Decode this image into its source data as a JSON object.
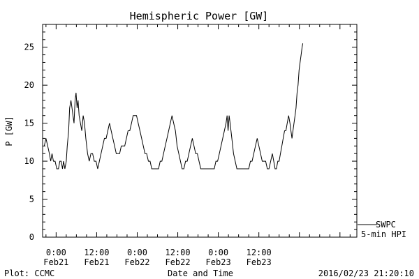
{
  "chart_data": {
    "type": "line",
    "title": "Hemispheric Power [GW]",
    "xlabel": "Date and Time",
    "ylabel": "P [GW]",
    "ylim": [
      0,
      28
    ],
    "xlim": [
      -4,
      89
    ],
    "x_unit": "hours since 2016-02-21 00:00",
    "yticks": [
      0,
      5,
      10,
      15,
      20,
      25
    ],
    "xticks": [
      {
        "x": 0,
        "time": "0:00",
        "date": "Feb21"
      },
      {
        "x": 12,
        "time": "12:00",
        "date": "Feb21"
      },
      {
        "x": 24,
        "time": "0:00",
        "date": "Feb22"
      },
      {
        "x": 36,
        "time": "12:00",
        "date": "Feb22"
      },
      {
        "x": 48,
        "time": "0:00",
        "date": "Feb23"
      },
      {
        "x": 60,
        "time": "12:00",
        "date": "Feb23"
      }
    ],
    "grid": false,
    "legend_placement": "bottom-right-outside",
    "series": [
      {
        "name": "SWPC 5-min HPI",
        "points": [
          [
            -3.5,
            12
          ],
          [
            -3.0,
            13
          ],
          [
            -2.5,
            12
          ],
          [
            -2.0,
            11
          ],
          [
            -1.6,
            10
          ],
          [
            -1.2,
            11
          ],
          [
            -0.8,
            10
          ],
          [
            -0.3,
            10
          ],
          [
            0.2,
            9
          ],
          [
            0.7,
            9
          ],
          [
            1.1,
            10
          ],
          [
            1.5,
            10
          ],
          [
            1.9,
            9
          ],
          [
            2.2,
            10
          ],
          [
            2.6,
            9
          ],
          [
            3.0,
            10
          ],
          [
            3.3,
            12
          ],
          [
            3.7,
            14
          ],
          [
            4.0,
            17
          ],
          [
            4.4,
            18
          ],
          [
            4.7,
            17
          ],
          [
            5.0,
            16
          ],
          [
            5.3,
            15
          ],
          [
            5.6,
            18
          ],
          [
            5.9,
            19
          ],
          [
            6.2,
            17
          ],
          [
            6.5,
            18
          ],
          [
            6.8,
            16
          ],
          [
            7.2,
            15
          ],
          [
            7.6,
            14
          ],
          [
            8.0,
            16
          ],
          [
            8.4,
            15
          ],
          [
            8.8,
            13
          ],
          [
            9.3,
            11
          ],
          [
            9.8,
            10
          ],
          [
            10.3,
            11
          ],
          [
            10.8,
            11
          ],
          [
            11.3,
            10
          ],
          [
            11.8,
            10
          ],
          [
            12.3,
            9
          ],
          [
            12.8,
            10
          ],
          [
            13.3,
            11
          ],
          [
            13.8,
            12
          ],
          [
            14.3,
            13
          ],
          [
            14.8,
            13
          ],
          [
            15.3,
            14
          ],
          [
            15.8,
            15
          ],
          [
            16.3,
            14
          ],
          [
            16.8,
            13
          ],
          [
            17.3,
            12
          ],
          [
            17.8,
            11
          ],
          [
            18.3,
            11
          ],
          [
            18.8,
            11
          ],
          [
            19.3,
            12
          ],
          [
            19.8,
            12
          ],
          [
            20.3,
            12
          ],
          [
            20.8,
            13
          ],
          [
            21.3,
            14
          ],
          [
            21.8,
            14
          ],
          [
            22.3,
            15
          ],
          [
            22.8,
            16
          ],
          [
            23.3,
            16
          ],
          [
            23.8,
            16
          ],
          [
            24.3,
            15
          ],
          [
            24.8,
            14
          ],
          [
            25.3,
            13
          ],
          [
            25.8,
            12
          ],
          [
            26.3,
            11
          ],
          [
            26.8,
            11
          ],
          [
            27.3,
            10
          ],
          [
            27.8,
            10
          ],
          [
            28.3,
            9
          ],
          [
            28.8,
            9
          ],
          [
            29.3,
            9
          ],
          [
            29.8,
            9
          ],
          [
            30.3,
            9
          ],
          [
            30.8,
            10
          ],
          [
            31.3,
            10
          ],
          [
            31.8,
            11
          ],
          [
            32.3,
            12
          ],
          [
            32.8,
            13
          ],
          [
            33.3,
            14
          ],
          [
            33.8,
            15
          ],
          [
            34.3,
            16
          ],
          [
            34.8,
            15
          ],
          [
            35.3,
            14
          ],
          [
            35.8,
            12
          ],
          [
            36.3,
            11
          ],
          [
            36.8,
            10
          ],
          [
            37.3,
            9
          ],
          [
            37.8,
            9
          ],
          [
            38.3,
            10
          ],
          [
            38.8,
            10
          ],
          [
            39.3,
            11
          ],
          [
            39.8,
            12
          ],
          [
            40.3,
            13
          ],
          [
            40.8,
            12
          ],
          [
            41.3,
            11
          ],
          [
            41.8,
            11
          ],
          [
            42.3,
            10
          ],
          [
            42.8,
            9
          ],
          [
            43.3,
            9
          ],
          [
            43.8,
            9
          ],
          [
            44.3,
            9
          ],
          [
            44.8,
            9
          ],
          [
            45.3,
            9
          ],
          [
            45.8,
            9
          ],
          [
            46.3,
            9
          ],
          [
            46.8,
            9
          ],
          [
            47.3,
            10
          ],
          [
            47.8,
            10
          ],
          [
            48.3,
            11
          ],
          [
            48.8,
            12
          ],
          [
            49.3,
            13
          ],
          [
            49.8,
            14
          ],
          [
            50.3,
            15
          ],
          [
            50.6,
            16
          ],
          [
            50.9,
            14
          ],
          [
            51.2,
            16
          ],
          [
            51.5,
            15
          ],
          [
            52.0,
            13
          ],
          [
            52.5,
            11
          ],
          [
            53.0,
            10
          ],
          [
            53.5,
            9
          ],
          [
            54.0,
            9
          ],
          [
            54.5,
            9
          ],
          [
            55.0,
            9
          ],
          [
            55.5,
            9
          ],
          [
            56.0,
            9
          ],
          [
            56.5,
            9
          ],
          [
            57.0,
            9
          ],
          [
            57.5,
            10
          ],
          [
            58.0,
            10
          ],
          [
            58.5,
            11
          ],
          [
            59.0,
            12
          ],
          [
            59.5,
            13
          ],
          [
            60.0,
            12
          ],
          [
            60.5,
            11
          ],
          [
            61.0,
            10
          ],
          [
            61.5,
            10
          ],
          [
            62.0,
            10
          ],
          [
            62.5,
            9
          ],
          [
            63.0,
            9
          ],
          [
            63.5,
            10
          ],
          [
            64.0,
            11
          ],
          [
            64.4,
            10
          ],
          [
            64.8,
            9
          ],
          [
            65.2,
            9
          ],
          [
            65.6,
            10
          ],
          [
            66.0,
            10
          ],
          [
            66.4,
            11
          ],
          [
            66.8,
            12
          ],
          [
            67.2,
            13
          ],
          [
            67.6,
            14
          ],
          [
            68.0,
            14
          ],
          [
            68.4,
            15
          ],
          [
            68.8,
            16
          ],
          [
            69.2,
            15
          ],
          [
            69.5,
            14
          ],
          [
            69.8,
            13
          ],
          [
            70.1,
            14
          ],
          [
            70.4,
            15
          ],
          [
            70.7,
            16
          ],
          [
            71.0,
            17
          ],
          [
            71.3,
            19
          ],
          [
            71.6,
            20
          ],
          [
            71.9,
            22
          ],
          [
            72.2,
            23
          ],
          [
            72.5,
            24
          ],
          [
            72.8,
            25
          ],
          [
            73.0,
            25.5
          ]
        ]
      }
    ]
  },
  "legend": {
    "line1": "SWPC",
    "line2": "5-min HPI"
  },
  "footer": {
    "left": "Plot: CCMC",
    "center": "Date and Time",
    "right": "2016/02/23 21:20:10"
  }
}
